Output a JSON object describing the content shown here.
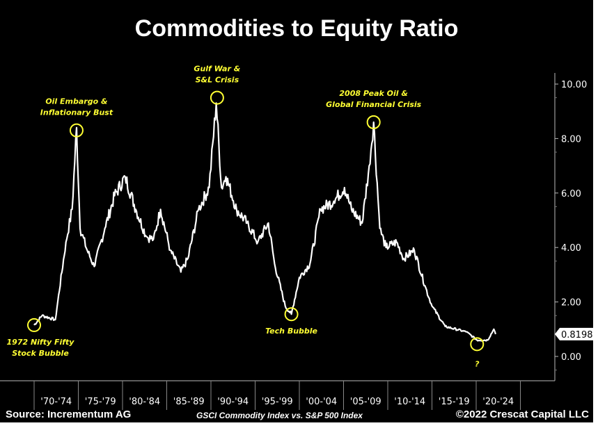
{
  "chart_data": {
    "type": "line",
    "title": "Commodities to Equity Ratio",
    "subtitle": "GSCI Commodity Index vs. S&P 500 Index",
    "source": "Source: Incrementum AG",
    "copyright": "©2022 Crescat Capital LLC",
    "xlabel": "",
    "ylabel": "",
    "xlim": [
      1970,
      2025
    ],
    "ylim": [
      -0.9,
      10.5
    ],
    "yticks": [
      {
        "value": 10,
        "label": "10.00"
      },
      {
        "value": 8,
        "label": "8.00"
      },
      {
        "value": 6,
        "label": "6.00"
      },
      {
        "value": 4,
        "label": "4.00"
      },
      {
        "value": 2,
        "label": "2.00"
      },
      {
        "value": 0,
        "label": "0.00"
      }
    ],
    "xticks": [
      {
        "start": 1970,
        "label": "'70-'74"
      },
      {
        "start": 1975,
        "label": "'75-'79"
      },
      {
        "start": 1980,
        "label": "'80-'84"
      },
      {
        "start": 1985,
        "label": "'85-'89"
      },
      {
        "start": 1990,
        "label": "'90-'94"
      },
      {
        "start": 1995,
        "label": "'95-'99"
      },
      {
        "start": 2000,
        "label": "'00-'04"
      },
      {
        "start": 2005,
        "label": "'05-'09"
      },
      {
        "start": 2010,
        "label": "'10-'14"
      },
      {
        "start": 2015,
        "label": "'15-'19"
      },
      {
        "start": 2020,
        "label": "'20-'24"
      }
    ],
    "last_value": {
      "value": 0.8198,
      "label": "0.8198"
    },
    "series": [
      {
        "name": "Commodities to Equity Ratio",
        "color": "#ffffff",
        "x": [
          1970.0,
          1970.9,
          1972.4,
          1973.6,
          1974.3,
          1974.8,
          1975.2,
          1976.0,
          1976.8,
          1978.0,
          1979.1,
          1980.3,
          1981.5,
          1982.7,
          1983.5,
          1984.3,
          1985.4,
          1986.6,
          1987.4,
          1988.6,
          1989.8,
          1990.6,
          1991.2,
          1991.7,
          1992.9,
          1994.1,
          1995.3,
          1996.5,
          1997.2,
          1998.4,
          1999.1,
          2000.0,
          2001.2,
          2002.4,
          2003.9,
          2005.1,
          2005.9,
          2007.1,
          2007.9,
          2008.4,
          2009.1,
          2009.8,
          2011.0,
          2011.8,
          2013.0,
          2014.2,
          2015.0,
          2016.5,
          2018.9,
          2020.1,
          2021.3,
          2022.0,
          2022.2
        ],
        "y": [
          1.15,
          1.5,
          1.35,
          4.2,
          5.4,
          8.4,
          4.7,
          3.9,
          3.3,
          4.7,
          5.9,
          6.6,
          5.4,
          4.4,
          4.3,
          5.4,
          3.9,
          3.1,
          3.6,
          5.4,
          6.2,
          9.3,
          6.2,
          6.6,
          5.4,
          4.9,
          4.2,
          4.9,
          3.4,
          1.85,
          1.55,
          2.9,
          3.4,
          5.4,
          5.7,
          6.2,
          5.4,
          4.9,
          7.0,
          8.6,
          4.7,
          4.0,
          4.2,
          3.6,
          3.9,
          2.6,
          1.85,
          1.1,
          0.9,
          0.6,
          0.6,
          1.0,
          0.82
        ]
      }
    ],
    "annotations": [
      {
        "year": 1970.0,
        "value": 1.15,
        "lines": [
          "1972 Nifty Fifty",
          "Stock Bubble"
        ],
        "pos": "below"
      },
      {
        "year": 1974.8,
        "value": 8.3,
        "lines": [
          "Oil Embargo &",
          "Inflationary Bust"
        ],
        "pos": "above"
      },
      {
        "year": 1990.7,
        "value": 9.5,
        "lines": [
          "Gulf War &",
          "S&L Crisis"
        ],
        "pos": "above"
      },
      {
        "year": 1999.1,
        "value": 1.55,
        "lines": [
          "Tech Bubble"
        ],
        "pos": "below"
      },
      {
        "year": 2008.4,
        "value": 8.6,
        "lines": [
          "2008 Peak Oil &",
          "Global Financial Crisis"
        ],
        "pos": "above"
      },
      {
        "year": 2020.1,
        "value": 0.45,
        "lines": [
          "?"
        ],
        "pos": "below"
      }
    ],
    "grid": false,
    "legend": "none"
  }
}
